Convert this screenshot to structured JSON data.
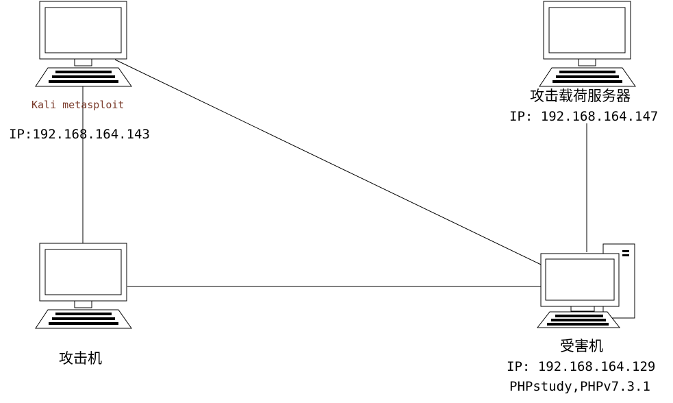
{
  "colors": {
    "line": "#000000",
    "kali_text": "#7a3b2b",
    "background": "#ffffff"
  },
  "nodes": {
    "kali": {
      "name": "Kali metasploit",
      "ip": "IP:192.168.164.143",
      "icon": "desktop-computer-icon"
    },
    "payload_server": {
      "name": "攻击载荷服务器",
      "ip": "IP: 192.168.164.147",
      "icon": "desktop-computer-icon"
    },
    "attacker": {
      "name": "攻击机",
      "icon": "desktop-computer-icon"
    },
    "victim": {
      "name": "受害机",
      "ip": "IP: 192.168.164.129",
      "software": "PHPstudy,PHPv7.3.1",
      "icon": "desktop-tower-computer-icon"
    }
  }
}
